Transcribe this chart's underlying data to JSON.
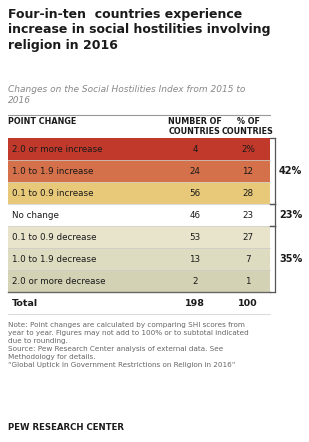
{
  "title": "Four-in-ten  countries experience\nincrease in social hostilities involving\nreligion in 2016",
  "subtitle": "Changes on the Social Hostilities Index from 2015 to\n2016",
  "col_headers": [
    "POINT CHANGE",
    "NUMBER OF\nCOUNTRIES",
    "% OF\nCOUNTRIES"
  ],
  "rows": [
    {
      "label": "2.0 or more increase",
      "num": "4",
      "pct": "2%",
      "bg": "#c0392b"
    },
    {
      "label": "1.0 to 1.9 increase",
      "num": "24",
      "pct": "12",
      "bg": "#d4704a"
    },
    {
      "label": "0.1 to 0.9 increase",
      "num": "56",
      "pct": "28",
      "bg": "#e8c97a"
    },
    {
      "label": "No change",
      "num": "46",
      "pct": "23",
      "bg": "#ffffff"
    },
    {
      "label": "0.1 to 0.9 decrease",
      "num": "53",
      "pct": "27",
      "bg": "#e8e4cc"
    },
    {
      "label": "1.0 to 1.9 decrease",
      "num": "13",
      "pct": "7",
      "bg": "#dddcc0"
    },
    {
      "label": "2.0 or more decrease",
      "num": "2",
      "pct": "1",
      "bg": "#d4d2b4"
    }
  ],
  "total_label": "Total",
  "total_num": "198",
  "total_pct": "100",
  "bracket_42": "42%",
  "bracket_23": "23%",
  "bracket_35": "35%",
  "note_line1": "Note: Point changes are calculated by comparing SHI scores from",
  "note_line2": "year to year. Figures may not add to 100% or to subtotal indicated",
  "note_line3": "due to rounding.",
  "note_line4": "Source: Pew Research Center analysis of external data. See",
  "note_line5": "Methodology for details.",
  "note_line6": "“Global Uptick in Government Restrictions on Religion in 2016”",
  "footer": "PEW RESEARCH CENTER",
  "title_color": "#1a1a1a",
  "subtitle_color": "#888888",
  "header_color": "#1a1a1a",
  "note_color": "#666666",
  "footer_color": "#1a1a1a"
}
